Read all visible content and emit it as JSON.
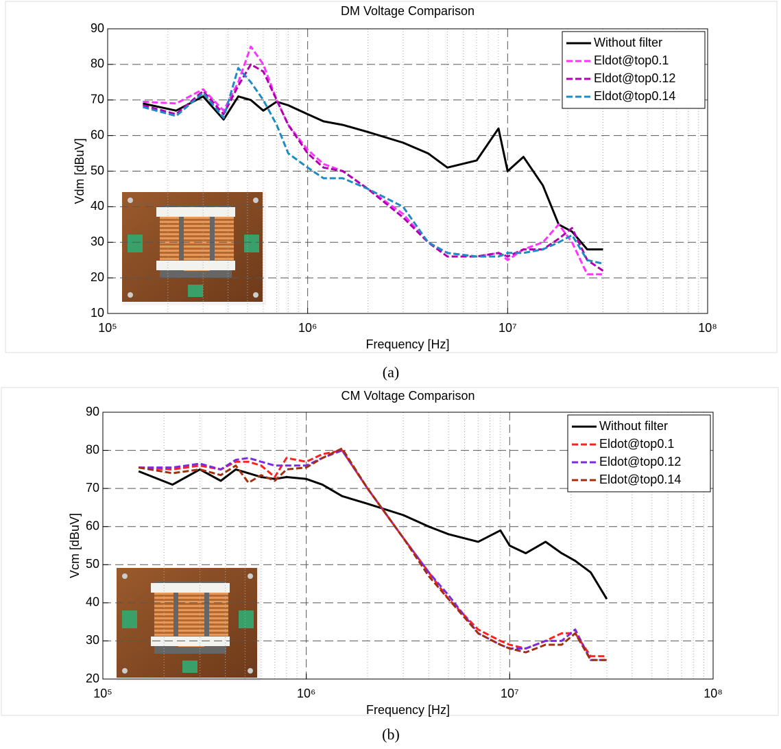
{
  "chart_data": [
    {
      "type": "line",
      "title": "DM Voltage Comparison",
      "caption": "(a)",
      "x_label": "Frequency [Hz]",
      "y_label": "Vdm [dBuV]",
      "x_scale": "log",
      "grid": true,
      "minor_grid": true,
      "legend": "upper right",
      "xlim": [
        100000,
        100000000
      ],
      "xticks": [
        {
          "value": 100000,
          "label": "10⁵"
        },
        {
          "value": 1000000,
          "label": "10⁶"
        },
        {
          "value": 10000000,
          "label": "10⁷"
        },
        {
          "value": 100000000,
          "label": "10⁸"
        }
      ],
      "ylim": [
        10,
        90
      ],
      "yticks": [
        10,
        20,
        30,
        40,
        50,
        60,
        70,
        80,
        90
      ],
      "x": [
        150000,
        220000,
        300000,
        380000,
        450000,
        520000,
        600000,
        700000,
        800000,
        1000000,
        1200000,
        1500000,
        2000000,
        3000000,
        4000000,
        5000000,
        7000000,
        9000000,
        10000000,
        12000000,
        15000000,
        18000000,
        21000000,
        25000000,
        30000000
      ],
      "series": [
        {
          "name": "Without filter",
          "color": "#000000",
          "linestyle": "solid",
          "values": [
            69,
            67,
            71,
            64.5,
            71,
            70,
            67,
            69.5,
            68.5,
            66,
            64,
            63,
            61,
            58,
            55,
            51,
            53,
            62,
            50,
            54,
            46,
            35,
            33,
            28,
            28
          ]
        },
        {
          "name": "Eldot@top0.1",
          "color": "#ff33ff",
          "linestyle": "dashed",
          "values": [
            69.5,
            69,
            73,
            67,
            75,
            85,
            80,
            70,
            63,
            56,
            52,
            50,
            45,
            38,
            30,
            27,
            26,
            27,
            25,
            28,
            30,
            35,
            30,
            21,
            21
          ]
        },
        {
          "name": "Eldot@top0.12",
          "color": "#b000b0",
          "linestyle": "dashed",
          "values": [
            68.5,
            66,
            72.5,
            66,
            74,
            80,
            78,
            70,
            63,
            55,
            51,
            50,
            45,
            37,
            30,
            26,
            26,
            27,
            26,
            28,
            28,
            31,
            34,
            25,
            22
          ]
        },
        {
          "name": "Eldot@top0.14",
          "color": "#1e8bc3",
          "linestyle": "dashed",
          "values": [
            68,
            65.5,
            72,
            65,
            79,
            75,
            70,
            63,
            55,
            51,
            48,
            48,
            45,
            40,
            30,
            27,
            26,
            26,
            27,
            27,
            28,
            30,
            32,
            25,
            24
          ]
        }
      ]
    },
    {
      "type": "line",
      "title": "CM Voltage Comparison",
      "caption": "(b)",
      "x_label": "Frequency [Hz]",
      "y_label": "Vcm [dBuV]",
      "x_scale": "log",
      "grid": true,
      "minor_grid": true,
      "legend": "upper right",
      "xlim": [
        100000,
        100000000
      ],
      "xticks": [
        {
          "value": 100000,
          "label": "10⁵"
        },
        {
          "value": 1000000,
          "label": "10⁶"
        },
        {
          "value": 10000000,
          "label": "10⁷"
        },
        {
          "value": 100000000,
          "label": "10⁸"
        }
      ],
      "ylim": [
        20,
        90
      ],
      "yticks": [
        20,
        30,
        40,
        50,
        60,
        70,
        80,
        90
      ],
      "x": [
        150000,
        220000,
        300000,
        380000,
        450000,
        520000,
        600000,
        700000,
        800000,
        1000000,
        1200000,
        1500000,
        2000000,
        3000000,
        4000000,
        5000000,
        7000000,
        9000000,
        10000000,
        12000000,
        15000000,
        18000000,
        21000000,
        25000000,
        30000000
      ],
      "series": [
        {
          "name": "Without filter",
          "color": "#000000",
          "linestyle": "solid",
          "values": [
            74.5,
            71,
            75,
            72,
            75,
            74,
            73,
            72.5,
            73,
            72.5,
            71,
            68,
            66,
            63,
            60,
            58,
            56,
            59,
            55,
            53,
            56,
            53,
            51,
            48,
            41
          ]
        },
        {
          "name": "Eldot@top0.1",
          "color": "#ff2020",
          "linestyle": "dashed",
          "values": [
            75.5,
            75,
            76,
            75,
            77,
            77,
            76,
            73,
            78,
            77,
            79,
            80,
            70,
            57,
            48,
            41,
            33,
            30,
            29,
            28,
            30,
            32,
            32,
            26,
            26
          ]
        },
        {
          "name": "Eldot@top0.12",
          "color": "#7b2be0",
          "linestyle": "dashed",
          "values": [
            75.5,
            75.5,
            76.5,
            75,
            77.5,
            78,
            77,
            76,
            76,
            76,
            78,
            80,
            70,
            57,
            48,
            42,
            32,
            29,
            28,
            28,
            30,
            30,
            33,
            25,
            25
          ]
        },
        {
          "name": "Eldot@top0.14",
          "color": "#a03010",
          "linestyle": "dashed",
          "values": [
            75.5,
            74,
            75,
            73.5,
            76,
            71.5,
            73.5,
            72,
            75,
            75.5,
            78,
            80.5,
            70,
            57,
            47,
            41,
            32,
            29,
            28,
            27,
            29,
            29,
            32,
            25,
            25
          ]
        }
      ]
    }
  ]
}
